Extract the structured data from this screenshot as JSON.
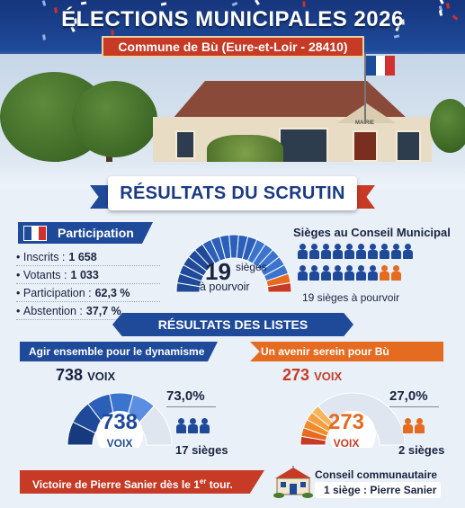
{
  "header": {
    "title": "ÉLECTIONS MUNICIPALES 2026",
    "subtitle": "Commune de Bù (Eure-et-Loir - 28410)"
  },
  "scene": {
    "sign": "MAIRIE"
  },
  "results_banner": "RÉSULTATS DU SCRUTIN",
  "participation": {
    "heading": "Participation",
    "rows": [
      {
        "label": "Inscrits :",
        "value": "1 658"
      },
      {
        "label": "Votants :",
        "value": "1 033"
      },
      {
        "label": "Participation :",
        "value": "62,3 %"
      },
      {
        "label": "Abstention :",
        "value": "37,7 %"
      }
    ]
  },
  "gauge": {
    "number": "19",
    "unit": "sièges",
    "subtitle": "à pourvoir"
  },
  "seats": {
    "title": "Sièges au Conseil Municipal",
    "total": 19,
    "list1_seats": 17,
    "list2_seats": 2,
    "note": "19 sièges à pourvoir"
  },
  "lists_header": "RÉSULTATS DES LISTES",
  "lists": [
    {
      "name": "Agir ensemble pour le dynamisme de Bù",
      "votes_number": "738",
      "votes_unit": "VOIX",
      "percent": "73,0%",
      "share": 0.73,
      "seats_label": "17 sièges",
      "color": "#1f4a9a"
    },
    {
      "name": "Un avenir serein pour Bù",
      "votes_number": "273",
      "votes_unit": "VOIX",
      "percent": "27,0%",
      "share": 0.27,
      "seats_label": "2 sièges",
      "color": "#e46b20"
    }
  ],
  "footer": {
    "victory_prefix": "Victoire de Pierre Sanier dès le 1",
    "victory_sup": "er",
    "victory_suffix": " tour.",
    "cc_title": "Conseil communautaire",
    "cc_seat": "1 siège : Pierre Sanier"
  },
  "colors": {
    "blue": "#1f4a9a",
    "red": "#c63a26",
    "orange": "#e46b20"
  }
}
